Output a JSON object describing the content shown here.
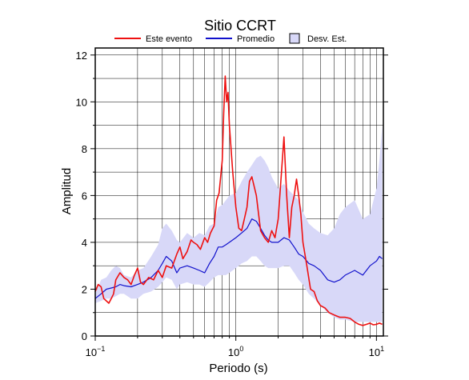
{
  "chart_data": {
    "type": "line",
    "title": "Sitio CCRT",
    "xlabel": "Periodo (s)",
    "ylabel": "Amplitud",
    "x_scale": "log",
    "xlim": [
      0.1,
      11.2
    ],
    "ylim": [
      0,
      12.3
    ],
    "y_ticks": [
      0,
      2,
      4,
      6,
      8,
      10,
      12
    ],
    "y_tick_labels": [
      "0",
      "2",
      "4",
      "6",
      "8",
      "10",
      "12"
    ],
    "x_ticks": [
      0.1,
      1,
      10
    ],
    "x_tick_labels": [
      {
        "base": "10",
        "exp": "−1"
      },
      {
        "base": "10",
        "exp": "0"
      },
      {
        "base": "10",
        "exp": "1"
      }
    ],
    "grid": true,
    "legend": {
      "placement": "top",
      "entries": [
        {
          "label": "Este evento",
          "color": "#ee1111",
          "kind": "line"
        },
        {
          "label": "Promedio",
          "color": "#1111cc",
          "kind": "line"
        },
        {
          "label": "Desv. Est.",
          "color": "#d8d8f8",
          "kind": "box"
        }
      ]
    },
    "series": [
      {
        "name": "Este evento",
        "color": "#ee1111",
        "x": [
          0.1,
          0.105,
          0.11,
          0.115,
          0.12,
          0.125,
          0.13,
          0.135,
          0.14,
          0.15,
          0.16,
          0.17,
          0.18,
          0.19,
          0.2,
          0.21,
          0.22,
          0.24,
          0.26,
          0.28,
          0.3,
          0.32,
          0.35,
          0.38,
          0.4,
          0.42,
          0.45,
          0.48,
          0.5,
          0.53,
          0.56,
          0.6,
          0.63,
          0.66,
          0.7,
          0.73,
          0.76,
          0.8,
          0.82,
          0.84,
          0.86,
          0.88,
          0.9,
          0.95,
          1.0,
          1.05,
          1.1,
          1.15,
          1.2,
          1.25,
          1.3,
          1.4,
          1.5,
          1.6,
          1.7,
          1.8,
          1.9,
          2.0,
          2.1,
          2.2,
          2.3,
          2.4,
          2.5,
          2.6,
          2.7,
          2.8,
          2.9,
          3.0,
          3.2,
          3.4,
          3.6,
          3.8,
          4.0,
          4.3,
          4.6,
          5.0,
          5.5,
          6.0,
          6.5,
          7.0,
          7.5,
          8.0,
          8.5,
          9.0,
          9.5,
          10.0,
          10.5,
          11.0
        ],
        "y": [
          1.9,
          2.2,
          2.1,
          1.6,
          1.5,
          1.4,
          1.6,
          1.8,
          2.4,
          2.7,
          2.5,
          2.4,
          2.2,
          2.6,
          2.9,
          2.3,
          2.2,
          2.5,
          2.4,
          2.8,
          2.5,
          3.0,
          2.9,
          3.5,
          3.8,
          3.3,
          3.6,
          4.1,
          4.0,
          3.9,
          3.7,
          4.2,
          4.0,
          4.4,
          4.7,
          5.8,
          6.1,
          7.5,
          9.5,
          11.1,
          10.0,
          10.4,
          9.0,
          7.0,
          5.5,
          4.6,
          4.5,
          5.0,
          5.5,
          6.6,
          6.8,
          6.0,
          4.5,
          4.2,
          4.0,
          4.5,
          4.2,
          5.0,
          6.8,
          8.5,
          6.0,
          4.2,
          5.5,
          6.0,
          6.7,
          6.0,
          5.2,
          4.0,
          3.0,
          2.0,
          1.9,
          1.5,
          1.3,
          1.2,
          1.0,
          0.9,
          0.8,
          0.8,
          0.75,
          0.6,
          0.5,
          0.45,
          0.5,
          0.55,
          0.48,
          0.5,
          0.55,
          0.5
        ]
      },
      {
        "name": "Promedio",
        "color": "#1111cc",
        "x": [
          0.1,
          0.11,
          0.12,
          0.13,
          0.14,
          0.15,
          0.16,
          0.18,
          0.2,
          0.22,
          0.25,
          0.28,
          0.3,
          0.32,
          0.35,
          0.38,
          0.4,
          0.45,
          0.5,
          0.55,
          0.6,
          0.65,
          0.7,
          0.75,
          0.8,
          0.85,
          0.9,
          1.0,
          1.1,
          1.2,
          1.3,
          1.4,
          1.5,
          1.6,
          1.7,
          1.8,
          2.0,
          2.2,
          2.4,
          2.6,
          2.8,
          3.0,
          3.3,
          3.6,
          4.0,
          4.5,
          5.0,
          5.5,
          6.0,
          7.0,
          8.0,
          9.0,
          10.0,
          10.5,
          11.0
        ],
        "y": [
          1.6,
          1.8,
          2.0,
          2.05,
          2.1,
          2.2,
          2.15,
          2.1,
          2.2,
          2.3,
          2.5,
          2.8,
          3.1,
          3.4,
          3.2,
          2.7,
          2.9,
          3.0,
          2.9,
          2.8,
          2.7,
          3.1,
          3.4,
          3.8,
          3.8,
          3.9,
          4.0,
          4.2,
          4.4,
          4.6,
          5.0,
          4.9,
          4.6,
          4.3,
          4.1,
          4.0,
          4.0,
          4.2,
          4.1,
          3.8,
          3.5,
          3.4,
          3.1,
          3.0,
          2.8,
          2.4,
          2.3,
          2.4,
          2.6,
          2.8,
          2.6,
          3.0,
          3.2,
          3.4,
          3.3
        ]
      }
    ],
    "std_band": {
      "name": "Desv. Est.",
      "color": "#d8d8f8",
      "x": [
        0.1,
        0.11,
        0.12,
        0.13,
        0.14,
        0.15,
        0.16,
        0.18,
        0.2,
        0.22,
        0.25,
        0.28,
        0.3,
        0.32,
        0.35,
        0.38,
        0.4,
        0.45,
        0.5,
        0.55,
        0.6,
        0.65,
        0.7,
        0.75,
        0.8,
        0.85,
        0.9,
        1.0,
        1.1,
        1.2,
        1.3,
        1.4,
        1.5,
        1.6,
        1.7,
        1.8,
        2.0,
        2.2,
        2.4,
        2.6,
        2.8,
        3.0,
        3.3,
        3.6,
        4.0,
        4.5,
        5.0,
        5.5,
        6.0,
        7.0,
        8.0,
        9.0,
        10.0,
        10.5,
        11.0
      ],
      "upper": [
        1.8,
        2.4,
        2.5,
        2.8,
        3.0,
        2.9,
        2.6,
        2.5,
        2.8,
        2.9,
        3.4,
        3.9,
        4.6,
        4.8,
        4.5,
        4.1,
        4.0,
        4.4,
        4.2,
        4.4,
        4.3,
        4.7,
        4.8,
        5.5,
        5.6,
        5.8,
        6.0,
        6.1,
        6.6,
        7.0,
        7.3,
        7.6,
        7.7,
        7.5,
        7.2,
        6.8,
        6.3,
        6.5,
        6.2,
        6.0,
        5.8,
        5.3,
        4.8,
        4.6,
        4.4,
        4.3,
        4.6,
        5.2,
        5.5,
        5.8,
        5.0,
        5.2,
        6.3,
        7.5,
        9.0
      ],
      "lower": [
        1.4,
        1.5,
        1.6,
        1.6,
        1.7,
        1.8,
        1.8,
        1.6,
        1.6,
        1.8,
        1.9,
        2.1,
        2.3,
        2.5,
        2.4,
        2.0,
        2.2,
        2.3,
        2.2,
        2.2,
        2.1,
        2.3,
        2.5,
        2.6,
        2.6,
        2.6,
        2.7,
        2.9,
        3.1,
        3.2,
        3.4,
        3.4,
        3.2,
        3.0,
        2.9,
        2.9,
        2.9,
        3.0,
        3.0,
        2.7,
        2.4,
        2.2,
        1.8,
        1.6,
        1.3,
        1.0,
        0.8,
        0.7,
        0.7,
        0.6,
        0.6,
        0.6,
        0.6,
        0.6,
        0.6
      ]
    }
  }
}
